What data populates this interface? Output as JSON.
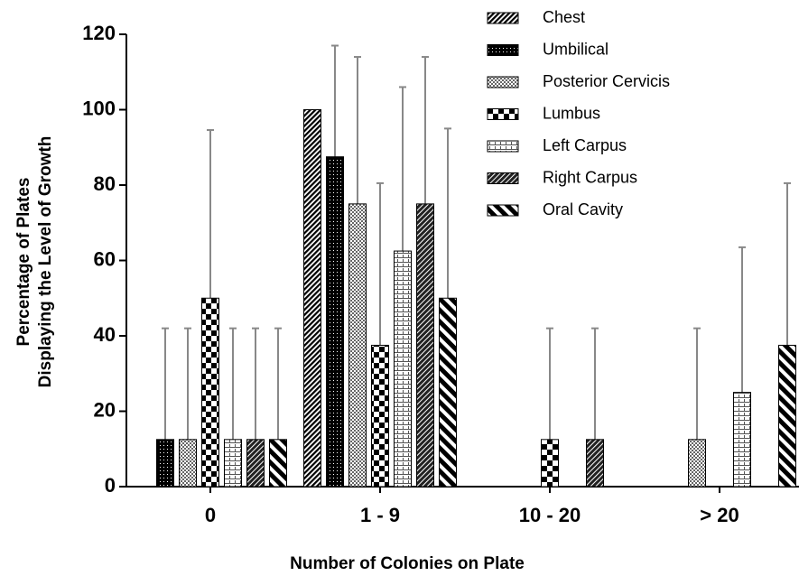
{
  "chart_data": {
    "type": "bar",
    "xlabel": "Number of Colonies on Plate",
    "ylabel": [
      "Percentage of Plates",
      "Displaying the Level of Growth"
    ],
    "categories": [
      "0",
      "1 - 9",
      "10 - 20",
      "> 20"
    ],
    "ylim": [
      0,
      120
    ],
    "yticks": [
      0,
      20,
      40,
      60,
      80,
      100,
      120
    ],
    "error_color": "#888888",
    "series": [
      {
        "name": "Chest",
        "pattern": "hatch-fine",
        "values": [
          0,
          100,
          0,
          0
        ],
        "errors": [
          null,
          null,
          null,
          null
        ]
      },
      {
        "name": "Umbilical",
        "pattern": "dots-dark",
        "values": [
          12.5,
          87.5,
          0,
          0
        ],
        "errors": [
          29.5,
          29.5,
          null,
          null
        ]
      },
      {
        "name": "Posterior Cervicis",
        "pattern": "crosshatch",
        "values": [
          12.5,
          75,
          0,
          12.5
        ],
        "errors": [
          29.5,
          39,
          null,
          29.5
        ]
      },
      {
        "name": "Lumbus",
        "pattern": "checker",
        "values": [
          50,
          37.5,
          12.5,
          0
        ],
        "errors": [
          44.6,
          43,
          29.5,
          null
        ]
      },
      {
        "name": "Left Carpus",
        "pattern": "bricks",
        "values": [
          12.5,
          62.5,
          0,
          25
        ],
        "errors": [
          29.5,
          43.5,
          null,
          38.5
        ]
      },
      {
        "name": "Right Carpus",
        "pattern": "hatch-dark",
        "values": [
          12.5,
          75,
          12.5,
          0
        ],
        "errors": [
          29.5,
          39,
          29.5,
          null
        ]
      },
      {
        "name": "Oral Cavity",
        "pattern": "stripes-wide",
        "values": [
          12.5,
          50,
          0,
          37.5
        ],
        "errors": [
          29.5,
          45,
          null,
          43
        ]
      }
    ]
  }
}
